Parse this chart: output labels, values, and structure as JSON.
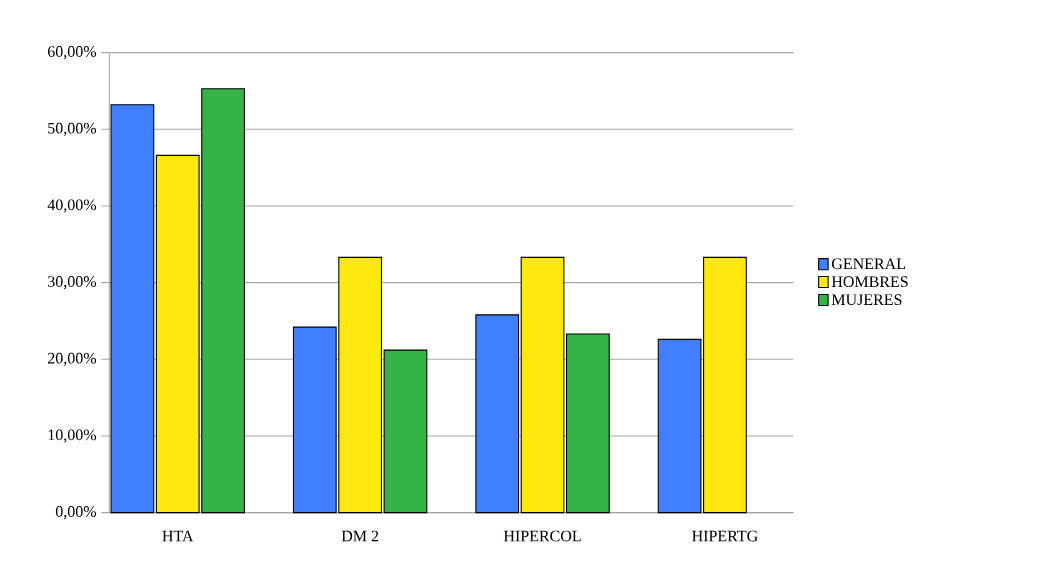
{
  "chart_data": {
    "type": "bar",
    "categories": [
      "HTA",
      "DM 2",
      "HIPERCOL",
      "HIPERTG"
    ],
    "series": [
      {
        "name": "GENERAL",
        "color": "#4080ff",
        "values": [
          53.2,
          24.2,
          25.8,
          22.6
        ]
      },
      {
        "name": "HOMBRES",
        "color": "#ffe810",
        "values": [
          46.6,
          33.3,
          33.3,
          33.3
        ]
      },
      {
        "name": "MUJERES",
        "color": "#35b347",
        "values": [
          55.3,
          21.2,
          23.3,
          null
        ]
      }
    ],
    "ylim": [
      0,
      60
    ],
    "yticks": [
      {
        "value": 0,
        "label": "0,00%"
      },
      {
        "value": 10,
        "label": "10,00%"
      },
      {
        "value": 20,
        "label": "20,00%"
      },
      {
        "value": 30,
        "label": "30,00%"
      },
      {
        "value": 40,
        "label": "40,00%"
      },
      {
        "value": 50,
        "label": "50,00%"
      },
      {
        "value": 60,
        "label": "60,00%"
      }
    ],
    "grid": "y",
    "legend": "right"
  }
}
